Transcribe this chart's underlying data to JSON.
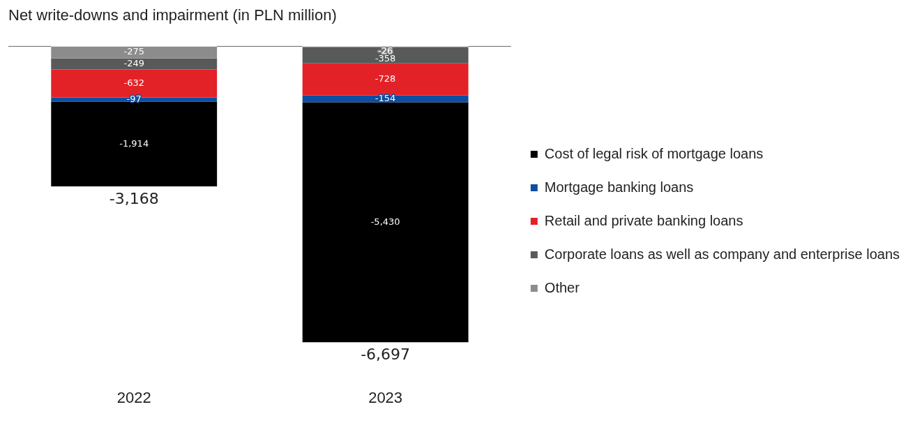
{
  "chart_data": {
    "type": "bar",
    "title": "Net write-downs and impairment (in PLN million)",
    "categories": [
      "2022",
      "2023"
    ],
    "stacked": true,
    "totals": [
      "-3,168",
      "-6,697"
    ],
    "legend": "right",
    "tick_labels": "x",
    "series": [
      {
        "name": "Other",
        "color": "#8c8c8c",
        "values": [
          -275,
          -26
        ],
        "value_labels": [
          "-275",
          "-26"
        ]
      },
      {
        "name": "Corporate loans as well as company and enterprise loans",
        "color": "#595959",
        "values": [
          -249,
          -358
        ],
        "value_labels": [
          "-249",
          "-358"
        ]
      },
      {
        "name": "Retail and private banking loans",
        "color": "#e32228",
        "values": [
          -632,
          -728
        ],
        "value_labels": [
          "-632",
          "-728"
        ]
      },
      {
        "name": "Mortgage banking loans",
        "color": "#0d4ea1",
        "values": [
          -97,
          -154
        ],
        "value_labels": [
          "-97",
          "-154"
        ]
      },
      {
        "name": "Cost of legal risk of mortgage loans",
        "color": "#000000",
        "values": [
          -1914,
          -5430
        ],
        "value_labels": [
          "-1,914",
          "-5,430"
        ]
      }
    ]
  }
}
